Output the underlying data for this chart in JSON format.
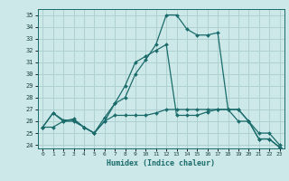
{
  "xlabel": "Humidex (Indice chaleur)",
  "ylabel": "",
  "xlim": [
    -0.5,
    23.5
  ],
  "ylim": [
    23.7,
    35.5
  ],
  "yticks": [
    24,
    25,
    26,
    27,
    28,
    29,
    30,
    31,
    32,
    33,
    34,
    35
  ],
  "xticks": [
    0,
    1,
    2,
    3,
    4,
    5,
    6,
    7,
    8,
    9,
    10,
    11,
    12,
    13,
    14,
    15,
    16,
    17,
    18,
    19,
    20,
    21,
    22,
    23
  ],
  "bg_color": "#cde8e8",
  "grid_color": "#aed0d0",
  "line_color": "#1a6b6b",
  "lines": [
    [
      25.5,
      26.7,
      26.1,
      26.1,
      25.5,
      25.0,
      26.3,
      27.5,
      28.0,
      30.0,
      31.2,
      32.5,
      35.0,
      35.0,
      33.8,
      33.3,
      33.3,
      33.5,
      27.0,
      27.0,
      26.0,
      24.5,
      24.5,
      23.8
    ],
    [
      25.5,
      26.7,
      26.0,
      26.2,
      25.5,
      25.0,
      26.0,
      27.5,
      29.0,
      31.0,
      31.5,
      32.0,
      32.5,
      26.5,
      26.5,
      26.5,
      26.8,
      27.0,
      27.0,
      27.0,
      26.0,
      24.5,
      24.5,
      23.8
    ],
    [
      25.5,
      25.5,
      26.0,
      26.0,
      25.5,
      25.0,
      26.0,
      26.5,
      26.5,
      26.5,
      26.5,
      26.7,
      27.0,
      27.0,
      27.0,
      27.0,
      27.0,
      27.0,
      27.0,
      26.0,
      26.0,
      25.0,
      25.0,
      24.0
    ]
  ]
}
